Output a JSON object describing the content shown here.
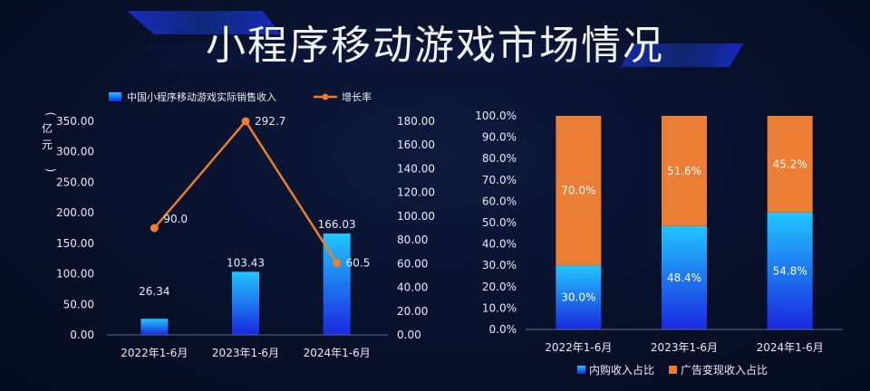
{
  "page": {
    "title": "小程序移动游戏市场情况"
  },
  "colors": {
    "bar_top": "#21c6ff",
    "bar_bottom": "#1a28e0",
    "line": "#f07d2a",
    "orange": "#ec7d34",
    "text": "#e8ecf7",
    "axis": "#9aa3bd"
  },
  "chart_data": [
    {
      "type": "bar",
      "categories": [
        "2022年1-6月",
        "2023年1-6月",
        "2024年1-6月"
      ],
      "series": [
        {
          "name": "中国小程序移动游戏实际销售收入",
          "values": [
            26.34,
            103.43,
            166.03
          ],
          "labels": [
            "26.34",
            "103.43",
            "166.03"
          ],
          "axis": "left"
        },
        {
          "name": "增长率",
          "type": "line",
          "values": [
            90.0,
            292.7,
            60.5
          ],
          "labels": [
            "90.0",
            "292.7",
            "60.5"
          ],
          "axis": "right"
        }
      ],
      "ylabel": "(亿元)",
      "ylim": [
        0,
        350
      ],
      "y_ticks": [
        "0.00",
        "50.00",
        "100.00",
        "150.00",
        "200.00",
        "250.00",
        "300.00",
        "350.00"
      ],
      "ylim_right": [
        0,
        180
      ],
      "y_ticks_right": [
        "0.00",
        "20.00",
        "40.00",
        "60.00",
        "80.00",
        "100.00",
        "120.00",
        "140.00",
        "160.00",
        "180.00"
      ],
      "legend_position": "top",
      "grid": false
    },
    {
      "type": "bar",
      "stacked": true,
      "categories": [
        "2022年1-6月",
        "2023年1-6月",
        "2024年1-6月"
      ],
      "series": [
        {
          "name": "内购收入占比",
          "values": [
            30.0,
            48.4,
            54.8
          ],
          "labels": [
            "30.0%",
            "48.4%",
            "54.8%"
          ]
        },
        {
          "name": "广告变现收入占比",
          "values": [
            70.0,
            51.6,
            45.2
          ],
          "labels": [
            "70.0%",
            "51.6%",
            "45.2%"
          ]
        }
      ],
      "ylim": [
        0,
        100
      ],
      "y_ticks": [
        "0.0%",
        "10.0%",
        "20.0%",
        "30.0%",
        "40.0%",
        "50.0%",
        "60.0%",
        "70.0%",
        "80.0%",
        "90.0%",
        "100.0%"
      ],
      "legend_position": "bottom",
      "grid": false
    }
  ]
}
